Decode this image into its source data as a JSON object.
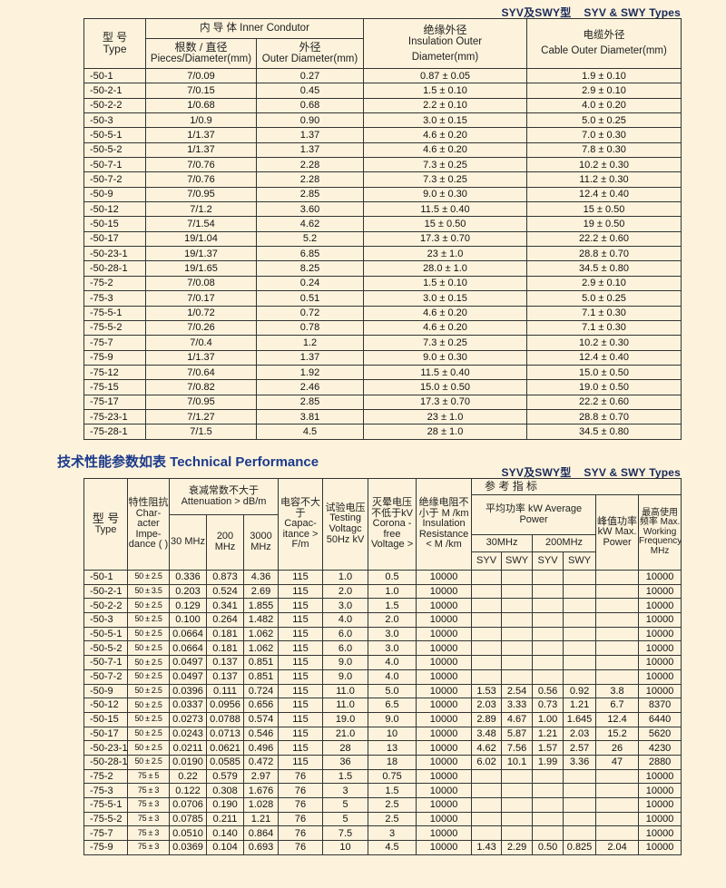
{
  "types_label": {
    "cn": "SYV及SWY型",
    "en": "SYV & SWY Types"
  },
  "table1": {
    "headers": {
      "type_cn": "型 号",
      "type_en": "Type",
      "inner": "内 导 体  Inner Condutor",
      "pieces_cn": "根数 / 直径",
      "pieces_en": "Pieces/Diameter(mm)",
      "od_cn": "外径",
      "od_en": "Outer Diameter(mm)",
      "ins_cn": "绝缘外径",
      "ins_en1": "Insulation Outer",
      "ins_en2": "Diameter(mm)",
      "cable_cn": "电缆外径",
      "cable_en": "Cable Outer Diameter(mm)"
    },
    "rows": [
      [
        "-50-1",
        "7/0.09",
        "0.27",
        "0.87 ± 0.05",
        "1.9 ± 0.10"
      ],
      [
        "-50-2-1",
        "7/0.15",
        "0.45",
        "1.5 ± 0.10",
        "2.9 ± 0.10"
      ],
      [
        "-50-2-2",
        "1/0.68",
        "0.68",
        "2.2 ± 0.10",
        "4.0 ± 0.20"
      ],
      [
        "-50-3",
        "1/0.9",
        "0.90",
        "3.0 ± 0.15",
        "5.0 ± 0.25"
      ],
      [
        "-50-5-1",
        "1/1.37",
        "1.37",
        "4.6 ± 0.20",
        "7.0 ± 0.30"
      ],
      [
        "-50-5-2",
        "1/1.37",
        "1.37",
        "4.6 ± 0.20",
        "7.8 ± 0.30"
      ],
      [
        "-50-7-1",
        "7/0.76",
        "2.28",
        "7.3 ± 0.25",
        "10.2 ± 0.30"
      ],
      [
        "-50-7-2",
        "7/0.76",
        "2.28",
        "7.3 ± 0.25",
        "11.2 ± 0.30"
      ],
      [
        "-50-9",
        "7/0.95",
        "2.85",
        "9.0 ± 0.30",
        "12.4 ± 0.40"
      ],
      [
        "-50-12",
        "7/1.2",
        "3.60",
        "11.5 ± 0.40",
        "15 ± 0.50"
      ],
      [
        "-50-15",
        "7/1.54",
        "4.62",
        "15 ± 0.50",
        "19 ± 0.50"
      ],
      [
        "-50-17",
        "19/1.04",
        "5.2",
        "17.3 ± 0.70",
        "22.2 ± 0.60"
      ],
      [
        "-50-23-1",
        "19/1.37",
        "6.85",
        "23 ± 1.0",
        "28.8 ± 0.70"
      ],
      [
        "-50-28-1",
        "19/1.65",
        "8.25",
        "28.0 ± 1.0",
        "34.5 ± 0.80"
      ],
      [
        "-75-2",
        "7/0.08",
        "0.24",
        "1.5 ± 0.10",
        "2.9 ± 0.10"
      ],
      [
        "-75-3",
        "7/0.17",
        "0.51",
        "3.0 ± 0.15",
        "5.0 ± 0.25"
      ],
      [
        "-75-5-1",
        "1/0.72",
        "0.72",
        "4.6 ± 0.20",
        "7.1 ± 0.30"
      ],
      [
        "-75-5-2",
        "7/0.26",
        "0.78",
        "4.6 ± 0.20",
        "7.1 ± 0.30"
      ],
      [
        "-75-7",
        "7/0.4",
        "1.2",
        "7.3 ± 0.25",
        "10.2 ± 0.30"
      ],
      [
        "-75-9",
        "1/1.37",
        "1.37",
        "9.0 ± 0.30",
        "12.4 ± 0.40"
      ],
      [
        "-75-12",
        "7/0.64",
        "1.92",
        "11.5 ± 0.40",
        "15.0 ± 0.50"
      ],
      [
        "-75-15",
        "7/0.82",
        "2.46",
        "15.0 ± 0.50",
        "19.0 ± 0.50"
      ],
      [
        "-75-17",
        "7/0.95",
        "2.85",
        "17.3 ± 0.70",
        "22.2 ± 0.60"
      ],
      [
        "-75-23-1",
        "7/1.27",
        "3.81",
        "23 ± 1.0",
        "28.8 ± 0.70"
      ],
      [
        "-75-28-1",
        "7/1.5",
        "4.5",
        "28 ± 1.0",
        "34.5 ± 0.80"
      ]
    ]
  },
  "performance_title": "技术性能参数如表 Technical Performance",
  "table2": {
    "headers": {
      "type_cn": "型 号",
      "type_en": "Type",
      "imp": "特性阻抗 Char-acter Impe-dance (  )",
      "att": "衰减常数不大于 Attenuation > dB/m",
      "f30": "30 MHz",
      "f200": "200 MHz",
      "f3000": "3000 MHz",
      "cap": "电容不大于 Capac-itance >  F/m",
      "test": "试验电压 Testing Voltagc 50Hz kV",
      "corona": "灭晕电压不低于kV Corona - free Voltage >",
      "ins": "绝缘电阻不小于 M  /km Insulation Resistance < M  /km",
      "ref": "参  考  指  标",
      "avg": "平均功率 kW Average Power",
      "m30": "30MHz",
      "m200": "200MHz",
      "syv": "SYV",
      "swy": "SWY",
      "peak": "峰值功率 kW Max. Power",
      "maxf": "最高使用频率 Max. Working Frequency MHz"
    },
    "rows": [
      [
        "-50-1",
        "50 ± 2.5",
        "0.336",
        "0.873",
        "4.36",
        "115",
        "1.0",
        "0.5",
        "10000",
        "",
        "",
        "",
        "",
        "",
        "10000"
      ],
      [
        "-50-2-1",
        "50 ± 3.5",
        "0.203",
        "0.524",
        "2.69",
        "115",
        "2.0",
        "1.0",
        "10000",
        "",
        "",
        "",
        "",
        "",
        "10000"
      ],
      [
        "-50-2-2",
        "50 ± 2.5",
        "0.129",
        "0.341",
        "1.855",
        "115",
        "3.0",
        "1.5",
        "10000",
        "",
        "",
        "",
        "",
        "",
        "10000"
      ],
      [
        "-50-3",
        "50 ± 2.5",
        "0.100",
        "0.264",
        "1.482",
        "115",
        "4.0",
        "2.0",
        "10000",
        "",
        "",
        "",
        "",
        "",
        "10000"
      ],
      [
        "-50-5-1",
        "50 ± 2.5",
        "0.0664",
        "0.181",
        "1.062",
        "115",
        "6.0",
        "3.0",
        "10000",
        "",
        "",
        "",
        "",
        "",
        "10000"
      ],
      [
        "-50-5-2",
        "50 ± 2.5",
        "0.0664",
        "0.181",
        "1.062",
        "115",
        "6.0",
        "3.0",
        "10000",
        "",
        "",
        "",
        "",
        "",
        "10000"
      ],
      [
        "-50-7-1",
        "50 ± 2.5",
        "0.0497",
        "0.137",
        "0.851",
        "115",
        "9.0",
        "4.0",
        "10000",
        "",
        "",
        "",
        "",
        "",
        "10000"
      ],
      [
        "-50-7-2",
        "50 ± 2.5",
        "0.0497",
        "0.137",
        "0.851",
        "115",
        "9.0",
        "4.0",
        "10000",
        "",
        "",
        "",
        "",
        "",
        "10000"
      ],
      [
        "-50-9",
        "50 ± 2.5",
        "0.0396",
        "0.111",
        "0.724",
        "115",
        "11.0",
        "5.0",
        "10000",
        "1.53",
        "2.54",
        "0.56",
        "0.92",
        "3.8",
        "10000"
      ],
      [
        "-50-12",
        "50 ± 2.5",
        "0.0337",
        "0.0956",
        "0.656",
        "115",
        "11.0",
        "6.5",
        "10000",
        "2.03",
        "3.33",
        "0.73",
        "1.21",
        "6.7",
        "8370"
      ],
      [
        "-50-15",
        "50 ± 2.5",
        "0.0273",
        "0.0788",
        "0.574",
        "115",
        "19.0",
        "9.0",
        "10000",
        "2.89",
        "4.67",
        "1.00",
        "1.645",
        "12.4",
        "6440"
      ],
      [
        "-50-17",
        "50 ± 2.5",
        "0.0243",
        "0.0713",
        "0.546",
        "115",
        "21.0",
        "10",
        "10000",
        "3.48",
        "5.87",
        "1.21",
        "2.03",
        "15.2",
        "5620"
      ],
      [
        "-50-23-1",
        "50 ± 2.5",
        "0.0211",
        "0.0621",
        "0.496",
        "115",
        "28",
        "13",
        "10000",
        "4.62",
        "7.56",
        "1.57",
        "2.57",
        "26",
        "4230"
      ],
      [
        "-50-28-1",
        "50 ± 2.5",
        "0.0190",
        "0.0585",
        "0.472",
        "115",
        "36",
        "18",
        "10000",
        "6.02",
        "10.1",
        "1.99",
        "3.36",
        "47",
        "2880"
      ],
      [
        "-75-2",
        "75 ± 5",
        "0.22",
        "0.579",
        "2.97",
        "76",
        "1.5",
        "0.75",
        "10000",
        "",
        "",
        "",
        "",
        "",
        "10000"
      ],
      [
        "-75-3",
        "75 ± 3",
        "0.122",
        "0.308",
        "1.676",
        "76",
        "3",
        "1.5",
        "10000",
        "",
        "",
        "",
        "",
        "",
        "10000"
      ],
      [
        "-75-5-1",
        "75 ± 3",
        "0.0706",
        "0.190",
        "1.028",
        "76",
        "5",
        "2.5",
        "10000",
        "",
        "",
        "",
        "",
        "",
        "10000"
      ],
      [
        "-75-5-2",
        "75 ± 3",
        "0.0785",
        "0.211",
        "1.21",
        "76",
        "5",
        "2.5",
        "10000",
        "",
        "",
        "",
        "",
        "",
        "10000"
      ],
      [
        "-75-7",
        "75 ± 3",
        "0.0510",
        "0.140",
        "0.864",
        "76",
        "7.5",
        "3",
        "10000",
        "",
        "",
        "",
        "",
        "",
        "10000"
      ],
      [
        "-75-9",
        "75 ± 3",
        "0.0369",
        "0.104",
        "0.693",
        "76",
        "10",
        "4.5",
        "10000",
        "1.43",
        "2.29",
        "0.50",
        "0.825",
        "2.04",
        "10000"
      ]
    ]
  }
}
